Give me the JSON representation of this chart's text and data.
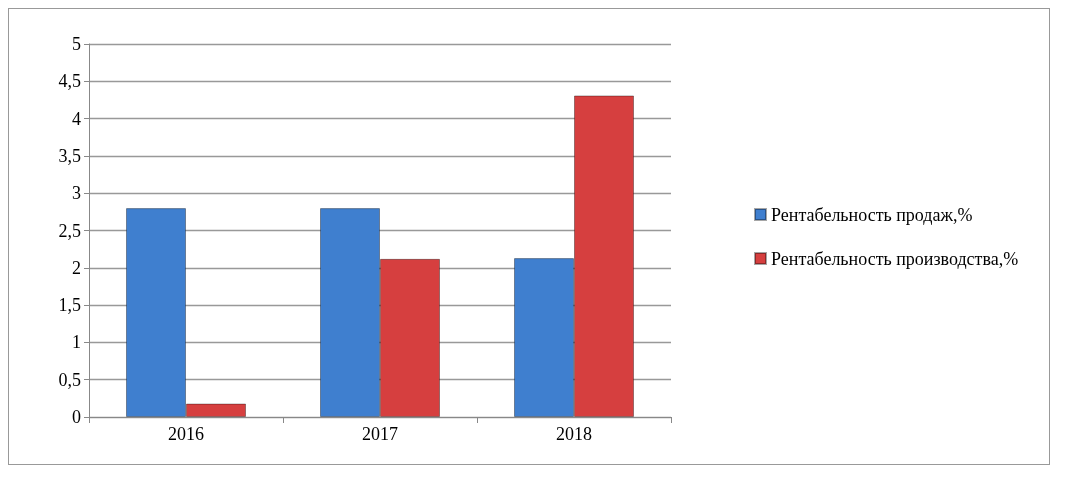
{
  "chart_data": {
    "type": "bar",
    "categories": [
      "2016",
      "2017",
      "2018"
    ],
    "series": [
      {
        "name": "Рентабельность продаж,%",
        "color": "#3f7fcf",
        "values": [
          2.8,
          2.8,
          2.13
        ]
      },
      {
        "name": "Рентабельность производства,%",
        "color": "#d63f3f",
        "values": [
          0.18,
          2.12,
          4.31
        ]
      }
    ],
    "ylim": [
      0,
      5
    ],
    "yticks": [
      0,
      {
        "value": 0.5,
        "label": "0,5"
      },
      1,
      {
        "value": 1.5,
        "label": "1,5"
      },
      2,
      {
        "value": 2.5,
        "label": "2,5"
      },
      3,
      {
        "value": 3.5,
        "label": "3,5"
      },
      4,
      {
        "value": 4.5,
        "label": "4,5"
      },
      5
    ],
    "grid": "y",
    "legend": "right"
  }
}
